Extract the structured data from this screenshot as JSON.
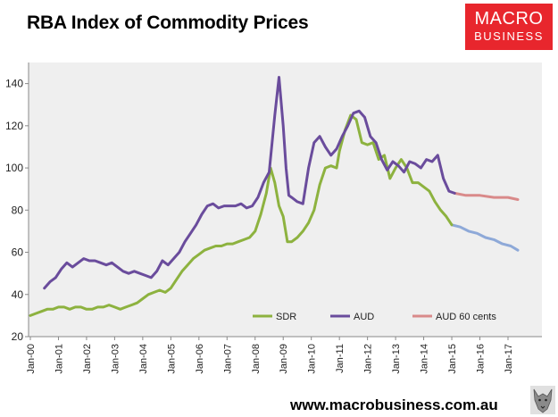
{
  "title": "RBA Index of Commodity Prices",
  "logo": {
    "line1": "MACRO",
    "line2": "BUSINESS"
  },
  "footer_url": "www.macrobusiness.com.au",
  "colors": {
    "sdr": "#8db23f",
    "aud": "#6a4c9c",
    "aud60": "#d98a8a",
    "sdr_forecast": "#8ea9d8",
    "plot_bg": "#efefef"
  },
  "chart_data": {
    "type": "line",
    "title": "RBA Index of Commodity Prices",
    "xlabel": "",
    "ylabel": "",
    "ylim": [
      20,
      150
    ],
    "yticks": [
      20,
      40,
      60,
      80,
      100,
      120,
      140
    ],
    "xlim": [
      2000,
      2017.5
    ],
    "xticks": [
      "Jan-00",
      "Jan-01",
      "Jan-02",
      "Jan-03",
      "Jan-04",
      "Jan-05",
      "Jan-06",
      "Jan-07",
      "Jan-08",
      "Jan-09",
      "Jan-10",
      "Jan-11",
      "Jan-12",
      "Jan-13",
      "Jan-14",
      "Jan-15",
      "Jan-16",
      "Jan-17"
    ],
    "grid": false,
    "legend": "bottom",
    "series": [
      {
        "name": "SDR",
        "color": "#8db23f",
        "x": [
          2000.0,
          2000.2,
          2000.4,
          2000.6,
          2000.8,
          2001.0,
          2001.2,
          2001.4,
          2001.6,
          2001.8,
          2002.0,
          2002.2,
          2002.4,
          2002.6,
          2002.8,
          2003.0,
          2003.2,
          2003.4,
          2003.6,
          2003.8,
          2004.0,
          2004.2,
          2004.4,
          2004.6,
          2004.8,
          2005.0,
          2005.2,
          2005.4,
          2005.6,
          2005.8,
          2006.0,
          2006.2,
          2006.4,
          2006.6,
          2006.8,
          2007.0,
          2007.2,
          2007.4,
          2007.6,
          2007.8,
          2008.0,
          2008.2,
          2008.4,
          2008.55,
          2008.7,
          2008.85,
          2009.0,
          2009.15,
          2009.3,
          2009.5,
          2009.7,
          2009.9,
          2010.1,
          2010.3,
          2010.5,
          2010.7,
          2010.9,
          2011.0,
          2011.2,
          2011.4,
          2011.6,
          2011.8,
          2012.0,
          2012.2,
          2012.4,
          2012.6,
          2012.8,
          2013.0,
          2013.2,
          2013.4,
          2013.6,
          2013.8,
          2014.0,
          2014.2,
          2014.4,
          2014.6,
          2014.8,
          2015.0
        ],
        "values": [
          30,
          31,
          32,
          33,
          33,
          34,
          34,
          33,
          34,
          34,
          33,
          33,
          34,
          34,
          35,
          34,
          33,
          34,
          35,
          36,
          38,
          40,
          41,
          42,
          41,
          43,
          47,
          51,
          54,
          57,
          59,
          61,
          62,
          63,
          63,
          64,
          64,
          65,
          66,
          67,
          70,
          78,
          88,
          100,
          93,
          82,
          77,
          65,
          65,
          67,
          70,
          74,
          80,
          92,
          100,
          101,
          100,
          108,
          118,
          125,
          123,
          112,
          111,
          112,
          104,
          106,
          95,
          100,
          104,
          100,
          93,
          93,
          91,
          89,
          84,
          80,
          77,
          73
        ]
      },
      {
        "name": "AUD",
        "color": "#6a4c9c",
        "x": [
          2000.5,
          2000.7,
          2000.9,
          2001.1,
          2001.3,
          2001.5,
          2001.7,
          2001.9,
          2002.1,
          2002.3,
          2002.5,
          2002.7,
          2002.9,
          2003.1,
          2003.3,
          2003.5,
          2003.7,
          2003.9,
          2004.1,
          2004.3,
          2004.5,
          2004.7,
          2004.9,
          2005.1,
          2005.3,
          2005.5,
          2005.7,
          2005.9,
          2006.1,
          2006.3,
          2006.5,
          2006.7,
          2006.9,
          2007.1,
          2007.3,
          2007.5,
          2007.7,
          2007.9,
          2008.1,
          2008.3,
          2008.5,
          2008.7,
          2008.85,
          2009.0,
          2009.1,
          2009.2,
          2009.3,
          2009.5,
          2009.7,
          2009.9,
          2010.1,
          2010.3,
          2010.5,
          2010.7,
          2010.9,
          2011.1,
          2011.3,
          2011.5,
          2011.7,
          2011.9,
          2012.1,
          2012.3,
          2012.5,
          2012.7,
          2012.9,
          2013.1,
          2013.3,
          2013.5,
          2013.7,
          2013.9,
          2014.1,
          2014.3,
          2014.5,
          2014.7,
          2014.9,
          2015.1
        ],
        "values": [
          43,
          46,
          48,
          52,
          55,
          53,
          55,
          57,
          56,
          56,
          55,
          54,
          55,
          53,
          51,
          50,
          51,
          50,
          49,
          48,
          51,
          56,
          54,
          57,
          60,
          65,
          69,
          73,
          78,
          82,
          83,
          81,
          82,
          82,
          82,
          83,
          81,
          82,
          86,
          93,
          98,
          125,
          143,
          120,
          100,
          87,
          86,
          84,
          83,
          100,
          112,
          115,
          110,
          106,
          109,
          115,
          120,
          126,
          127,
          124,
          115,
          112,
          104,
          99,
          103,
          101,
          98,
          103,
          102,
          100,
          104,
          103,
          106,
          95,
          89,
          88
        ]
      },
      {
        "name": "AUD 60 cents",
        "color": "#d98a8a",
        "x": [
          2015.1,
          2015.5,
          2016.0,
          2016.5,
          2017.0,
          2017.35
        ],
        "values": [
          88,
          87,
          87,
          86,
          86,
          85
        ]
      },
      {
        "name": "",
        "color": "#8ea9d8",
        "x": [
          2015.0,
          2015.3,
          2015.6,
          2015.9,
          2016.2,
          2016.5,
          2016.8,
          2017.1,
          2017.35
        ],
        "values": [
          73,
          72,
          70,
          69,
          67,
          66,
          64,
          63,
          61
        ]
      }
    ]
  }
}
